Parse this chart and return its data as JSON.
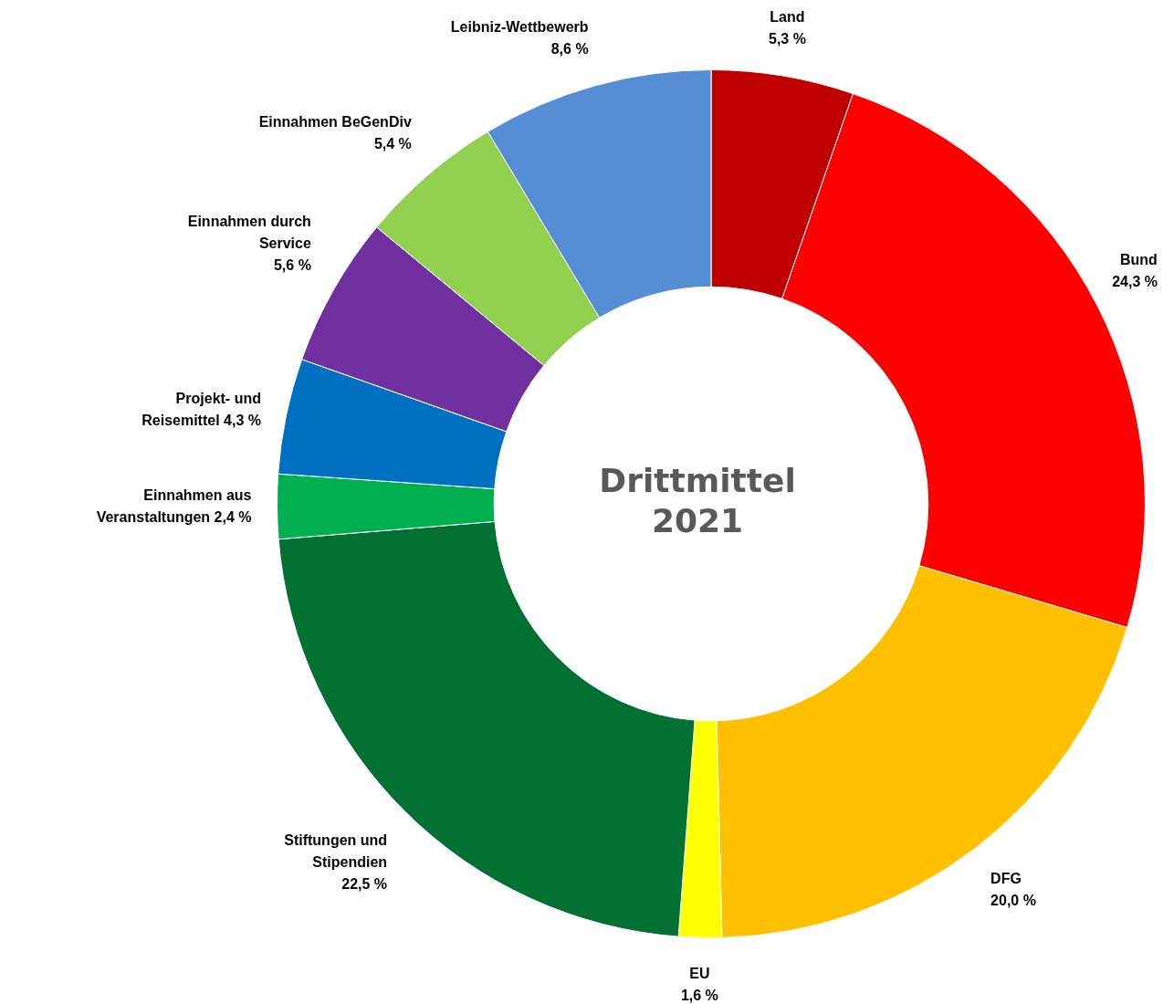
{
  "chart_data": {
    "type": "donut",
    "title": "Drittmittel 2021",
    "categories": [
      "Land",
      "Bund",
      "DFG",
      "EU",
      "Stiftungen und Stipendien",
      "Einnahmen aus Veranstaltungen",
      "Projekt- und Reisemittel",
      "Einnahmen durch Service",
      "Einnahmen BeGenDiv",
      "Leibniz-Wettbewerb"
    ],
    "values": [
      5.3,
      24.3,
      20.0,
      1.6,
      22.5,
      2.4,
      4.3,
      5.6,
      5.4,
      8.6
    ],
    "value_labels": [
      "5,3 %",
      "24,3 %",
      "20,0 %",
      "1,6 %",
      "22,5 %",
      "2,4 %",
      "4,3 %",
      "5,6 %",
      "5,4 %",
      "8,6 %"
    ],
    "colors": [
      "#c00000",
      "#ff0000",
      "#ffc000",
      "#ffff00",
      "#007033",
      "#00b050",
      "#0070c0",
      "#7030a0",
      "#92d050",
      "#558ed5"
    ],
    "legend": false
  }
}
